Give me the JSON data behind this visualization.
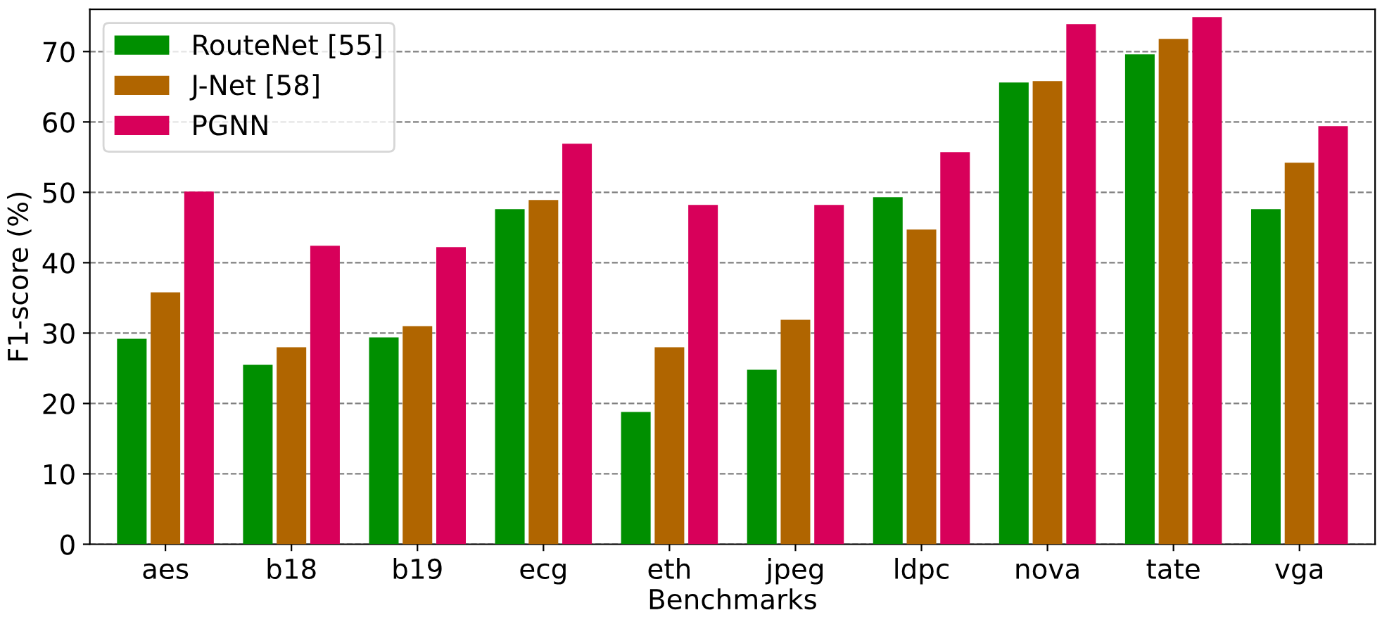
{
  "chart_data": {
    "type": "bar",
    "xlabel": "Benchmarks",
    "ylabel": "F1-score (%)",
    "categories": [
      "aes",
      "b18",
      "b19",
      "ecg",
      "eth",
      "jpeg",
      "ldpc",
      "nova",
      "tate",
      "vga"
    ],
    "series": [
      {
        "name": "RouteNet [55]",
        "color": "#008f00",
        "values": [
          29.2,
          25.5,
          29.4,
          47.6,
          18.8,
          24.8,
          49.3,
          65.6,
          69.6,
          47.6
        ]
      },
      {
        "name": "J-Net [58]",
        "color": "#b06500",
        "values": [
          35.8,
          28.0,
          31.0,
          48.9,
          28.0,
          31.9,
          44.7,
          65.8,
          71.8,
          54.2
        ]
      },
      {
        "name": "PGNN",
        "color": "#d8005a",
        "values": [
          50.1,
          42.4,
          42.2,
          56.9,
          48.2,
          48.2,
          55.7,
          73.9,
          74.9,
          59.4
        ]
      }
    ],
    "ylim": [
      0,
      76
    ],
    "yticks": [
      0,
      10,
      20,
      30,
      40,
      50,
      60,
      70
    ],
    "grid": "y",
    "legend": "top left"
  }
}
